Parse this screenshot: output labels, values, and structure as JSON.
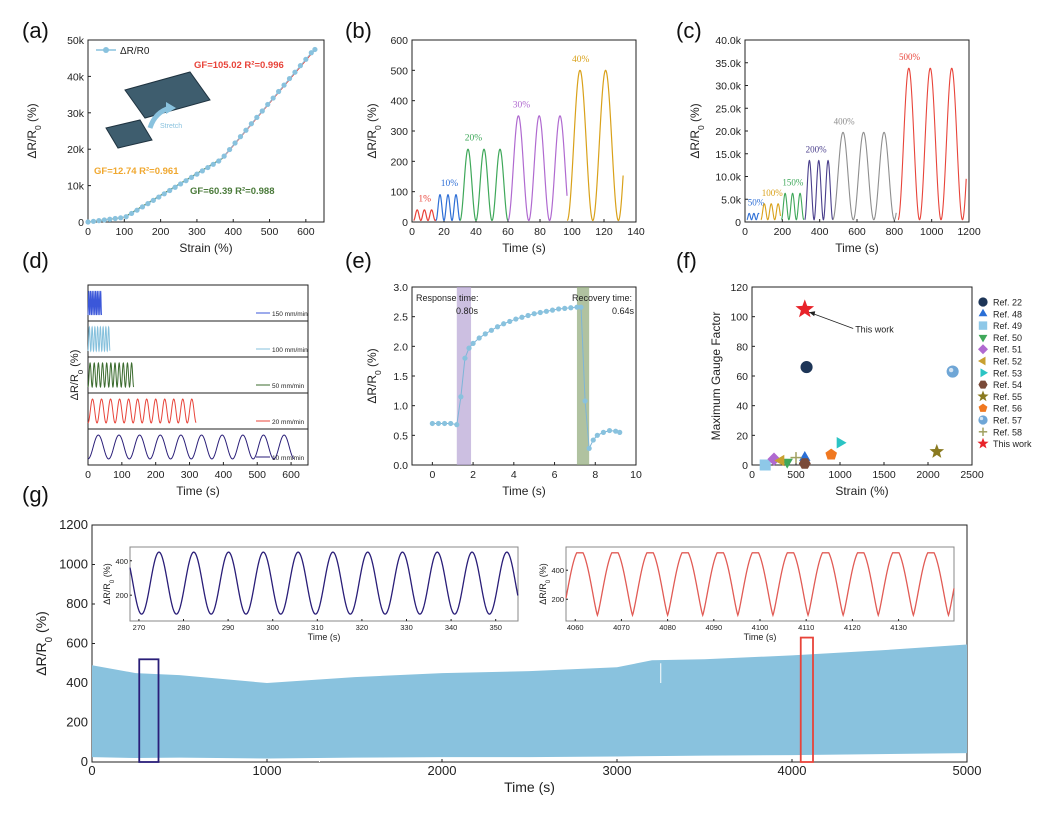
{
  "panels": [
    {
      "label": "(a)"
    },
    {
      "label": "(b)"
    },
    {
      "label": "(c)"
    },
    {
      "label": "(d)"
    },
    {
      "label": "(e)"
    },
    {
      "label": "(f)"
    },
    {
      "label": "(g)"
    }
  ],
  "colors": {
    "blue_data": "#89c2de",
    "red_fit": "#e8443a",
    "orange_fit": "#f0a830",
    "green_fit": "#4a7a3a",
    "navy": "#2a1e78",
    "inset_red": "#e15b55",
    "purple_band": "#b7a4d4",
    "green_band": "#8fa878"
  },
  "chart_data": [
    {
      "id": "a",
      "type": "scatter",
      "xlabel": "Strain (%)",
      "ylabel": "ΔR/R0 (%)",
      "xlim": [
        0,
        650
      ],
      "ylim": [
        0,
        50000
      ],
      "xticks": [
        0,
        100,
        200,
        300,
        400,
        500,
        600
      ],
      "yticks": [
        0,
        10000,
        20000,
        30000,
        40000,
        50000
      ],
      "ytick_labels": [
        "0",
        "10k",
        "20k",
        "30k",
        "40k",
        "50k"
      ],
      "legend": "ΔR/R0",
      "inset_label": "Stretch",
      "annotations": [
        {
          "text": "GF=105.02  R²=0.996",
          "color": "red"
        },
        {
          "text": "GF=12.74  R²=0.961",
          "color": "orange"
        },
        {
          "text": "GF=60.39  R²=0.988",
          "color": "green"
        }
      ],
      "fit_segments": [
        {
          "x": [
            0,
            100
          ],
          "y": [
            0,
            1270
          ],
          "color": "orange"
        },
        {
          "x": [
            100,
            370
          ],
          "y": [
            1270,
            17500
          ],
          "color": "green"
        },
        {
          "x": [
            370,
            625
          ],
          "y": [
            17500,
            47400
          ],
          "color": "red"
        }
      ],
      "series": {
        "x": [
          0,
          15,
          30,
          45,
          60,
          75,
          90,
          105,
          120,
          135,
          150,
          165,
          180,
          195,
          210,
          225,
          240,
          255,
          270,
          285,
          300,
          315,
          330,
          345,
          360,
          375,
          390,
          405,
          420,
          435,
          450,
          465,
          480,
          495,
          510,
          525,
          540,
          555,
          570,
          585,
          600,
          615,
          625
        ],
        "y": [
          0,
          190,
          380,
          570,
          760,
          960,
          1150,
          1450,
          2350,
          3250,
          4150,
          5050,
          5950,
          6850,
          7750,
          8650,
          9550,
          10450,
          11350,
          12250,
          13150,
          14050,
          14950,
          15850,
          16750,
          18100,
          19900,
          21700,
          23450,
          25200,
          27000,
          28750,
          30500,
          32300,
          34050,
          35850,
          37600,
          39400,
          41150,
          42950,
          44700,
          46500,
          47400
        ]
      }
    },
    {
      "id": "b",
      "type": "line",
      "xlabel": "Time (s)",
      "ylabel": "ΔR/R0 (%)",
      "xlim": [
        0,
        140
      ],
      "ylim": [
        0,
        600
      ],
      "xticks": [
        0,
        20,
        40,
        60,
        80,
        100,
        120,
        140
      ],
      "yticks": [
        0,
        100,
        200,
        300,
        400,
        500,
        600
      ],
      "groups": [
        {
          "label": "1%",
          "start": 1,
          "period": 4.5,
          "amp": 35,
          "color": "#e8443a"
        },
        {
          "label": "10%",
          "start": 15,
          "period": 5,
          "amp": 85,
          "color": "#2e6fd6"
        },
        {
          "label": "20%",
          "start": 30,
          "period": 10,
          "amp": 235,
          "color": "#3fa85a"
        },
        {
          "label": "30%",
          "start": 60,
          "period": 13,
          "amp": 345,
          "color": "#b06ad0"
        },
        {
          "label": "40%",
          "start": 97,
          "period": 16,
          "amp": 495,
          "color": "#d9a11a"
        }
      ]
    },
    {
      "id": "c",
      "type": "line",
      "xlabel": "Time (s)",
      "ylabel": "ΔR/R0 (%)",
      "xlim": [
        0,
        1200
      ],
      "ylim": [
        0,
        40000
      ],
      "xticks": [
        0,
        200,
        400,
        600,
        800,
        1000,
        1200
      ],
      "yticks": [
        0,
        5000,
        10000,
        15000,
        20000,
        25000,
        30000,
        35000,
        40000
      ],
      "ytick_labels": [
        "0",
        "5.0k",
        "10.0k",
        "15.0k",
        "20.0k",
        "25.0k",
        "30.0k",
        "35.0k",
        "40.0k"
      ],
      "groups": [
        {
          "label": "50%",
          "start": 10,
          "period": 25,
          "amp": 1900,
          "color": "#2e6fd6"
        },
        {
          "label": "100%",
          "start": 85,
          "period": 37,
          "amp": 4000,
          "color": "#d9a11a"
        },
        {
          "label": "150%",
          "start": 195,
          "period": 40,
          "amp": 6300,
          "color": "#3fa85a"
        },
        {
          "label": "200%",
          "start": 320,
          "period": 50,
          "amp": 13500,
          "color": "#4a3f8c"
        },
        {
          "label": "400%",
          "start": 470,
          "period": 110,
          "amp": 19700,
          "color": "#8e8e8e"
        },
        {
          "label": "500%",
          "start": 820,
          "period": 115,
          "amp": 33800,
          "color": "#e8443a"
        }
      ]
    },
    {
      "id": "d",
      "type": "line",
      "xlabel": "Time (s)",
      "ylabel": "ΔR/R0 (%)",
      "xlim": [
        0,
        650
      ],
      "xticks": [
        0,
        100,
        200,
        300,
        400,
        500,
        600
      ],
      "rows": [
        {
          "label": "150 mm/min",
          "end": 40,
          "cycles": 8,
          "color": "#3b57d9"
        },
        {
          "label": "100 mm/min",
          "end": 65,
          "cycles": 8,
          "color": "#85c0dc"
        },
        {
          "label": "50 mm/min",
          "end": 135,
          "cycles": 11,
          "color": "#3b6b2e"
        },
        {
          "label": "20 mm/min",
          "end": 320,
          "cycles": 12,
          "color": "#e8443a"
        },
        {
          "label": "10 mm/min",
          "end": 610,
          "cycles": 10,
          "color": "#2a1e78"
        }
      ]
    },
    {
      "id": "e",
      "type": "scatter",
      "xlabel": "Time (s)",
      "ylabel": "ΔR/R0 (%)",
      "xlim": [
        -1,
        10
      ],
      "ylim": [
        0,
        3
      ],
      "xticks": [
        0,
        2,
        4,
        6,
        8,
        10
      ],
      "yticks": [
        0,
        0.5,
        1.0,
        1.5,
        2.0,
        2.5,
        3.0
      ],
      "ytick_labels": [
        "0.0",
        "0.5",
        "1.0",
        "1.5",
        "2.0",
        "2.5",
        "3.0"
      ],
      "response_label": "Response time:",
      "response_value": "0.80s",
      "recovery_label": "Recovery time:",
      "recovery_value": "0.64s",
      "response_band": [
        1.2,
        1.9
      ],
      "recovery_band": [
        7.1,
        7.7
      ],
      "series": {
        "x": [
          0,
          0.3,
          0.6,
          0.9,
          1.2,
          1.4,
          1.6,
          1.8,
          2.0,
          2.3,
          2.6,
          2.9,
          3.2,
          3.5,
          3.8,
          4.1,
          4.4,
          4.7,
          5.0,
          5.3,
          5.6,
          5.9,
          6.2,
          6.5,
          6.8,
          7.1,
          7.3,
          7.5,
          7.7,
          7.9,
          8.1,
          8.4,
          8.7,
          9.0,
          9.2
        ],
        "y": [
          0.7,
          0.7,
          0.7,
          0.7,
          0.68,
          1.15,
          1.8,
          1.97,
          2.05,
          2.14,
          2.21,
          2.27,
          2.33,
          2.38,
          2.42,
          2.46,
          2.49,
          2.52,
          2.55,
          2.57,
          2.59,
          2.61,
          2.63,
          2.64,
          2.65,
          2.66,
          2.66,
          1.08,
          0.28,
          0.42,
          0.5,
          0.55,
          0.58,
          0.57,
          0.55
        ]
      }
    },
    {
      "id": "f",
      "type": "scatter",
      "xlabel": "Strain (%)",
      "ylabel": "Maximum Gauge Factor",
      "xlim": [
        0,
        2500
      ],
      "ylim": [
        0,
        120
      ],
      "xticks": [
        0,
        500,
        1000,
        1500,
        2000,
        2500
      ],
      "yticks": [
        0,
        20,
        40,
        60,
        80,
        100,
        120
      ],
      "annotation": "This work",
      "points": [
        {
          "name": "Ref. 22",
          "x": 620,
          "y": 66,
          "marker": "circle",
          "color": "#1d3557"
        },
        {
          "name": "Ref. 48",
          "x": 600,
          "y": 5,
          "marker": "triangle-up",
          "color": "#2a6fd6"
        },
        {
          "name": "Ref. 49",
          "x": 150,
          "y": 0,
          "marker": "square",
          "color": "#8ec8e8"
        },
        {
          "name": "Ref. 50",
          "x": 400,
          "y": 2,
          "marker": "triangle-down",
          "color": "#3fa85a"
        },
        {
          "name": "Ref. 51",
          "x": 250,
          "y": 4,
          "marker": "diamond",
          "color": "#b06ad0"
        },
        {
          "name": "Ref. 52",
          "x": 330,
          "y": 3,
          "marker": "triangle-left",
          "color": "#c8a030"
        },
        {
          "name": "Ref. 53",
          "x": 1000,
          "y": 15,
          "marker": "triangle-right",
          "color": "#2bc4c4"
        },
        {
          "name": "Ref. 54",
          "x": 600,
          "y": 1,
          "marker": "hexagon",
          "color": "#7a4a38"
        },
        {
          "name": "Ref. 55",
          "x": 2100,
          "y": 9,
          "marker": "star",
          "color": "#8a7a20"
        },
        {
          "name": "Ref. 56",
          "x": 900,
          "y": 7,
          "marker": "pentagon",
          "color": "#f07820"
        },
        {
          "name": "Ref. 57",
          "x": 2280,
          "y": 63,
          "marker": "sphere",
          "color": "#6fa6d6"
        },
        {
          "name": "Ref. 58",
          "x": 500,
          "y": 5,
          "marker": "plus",
          "color": "#a0a060"
        },
        {
          "name": "This work",
          "x": 600,
          "y": 105,
          "marker": "star",
          "color": "#e8232a"
        }
      ]
    },
    {
      "id": "g",
      "type": "area",
      "xlabel": "Time (s)",
      "ylabel": "ΔR/R0 (%)",
      "xlim": [
        0,
        5000
      ],
      "ylim": [
        0,
        1200
      ],
      "xticks": [
        0,
        1000,
        2000,
        3000,
        4000,
        5000
      ],
      "yticks": [
        0,
        200,
        400,
        600,
        800,
        1000,
        1200
      ],
      "envelope": {
        "t": [
          0,
          250,
          500,
          1000,
          1500,
          2000,
          2500,
          3000,
          3200,
          3500,
          4000,
          4500,
          5000
        ],
        "upper": [
          490,
          450,
          440,
          400,
          430,
          450,
          460,
          480,
          515,
          520,
          540,
          565,
          595
        ],
        "lower": [
          25,
          20,
          22,
          18,
          22,
          25,
          25,
          28,
          30,
          32,
          35,
          40,
          45
        ]
      },
      "highlight_boxes": [
        {
          "x": [
            270,
            380
          ],
          "y": [
            0,
            520
          ],
          "color": "#2a1e78"
        },
        {
          "x": [
            4050,
            4120
          ],
          "y": [
            0,
            630
          ],
          "color": "#e8443a"
        }
      ],
      "insets": [
        {
          "id": "g1",
          "xlabel": "Time (s)",
          "ylabel": "ΔR/R0 (%)",
          "xlim": [
            268,
            355
          ],
          "xticks": [
            270,
            280,
            290,
            300,
            310,
            320,
            330,
            340,
            350
          ],
          "ylim": [
            50,
            480
          ],
          "yticks": [
            200,
            400
          ],
          "period": 7.8,
          "phase": 274.5,
          "color": "#2a1e78"
        },
        {
          "id": "g2",
          "xlabel": "Time (s)",
          "ylabel": "ΔR/R0 (%)",
          "xlim": [
            4058,
            4142
          ],
          "xticks": [
            4060,
            4070,
            4080,
            4090,
            4100,
            4110,
            4120,
            4130
          ],
          "ylim": [
            50,
            560
          ],
          "yticks": [
            200,
            400
          ],
          "period": 7.6,
          "phase": 4061,
          "color": "#e15b55"
        }
      ]
    }
  ]
}
